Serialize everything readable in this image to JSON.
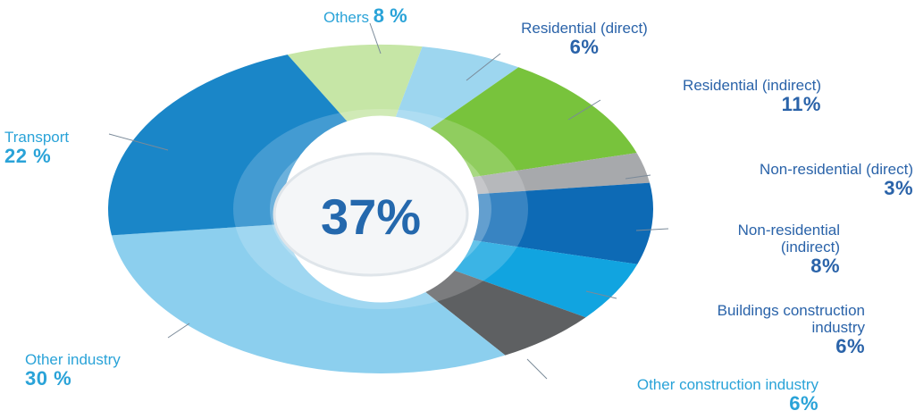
{
  "chart_data": {
    "type": "pie",
    "center_label": "37%",
    "slices": [
      {
        "name": "Others",
        "value": 8,
        "value_label": "8%",
        "color": "#c6e6a6"
      },
      {
        "name": "Residential (direct)",
        "value": 6,
        "value_label": "6%",
        "color": "#9dd6ef"
      },
      {
        "name": "Residential (indirect)",
        "value": 11,
        "value_label": "11%",
        "color": "#78c33c"
      },
      {
        "name": "Non-residential (direct)",
        "value": 3,
        "value_label": "3%",
        "color": "#a7a9ac"
      },
      {
        "name": "Non-residential (indirect)",
        "value": 8,
        "value_label": "8%",
        "color": "#0d6ab5"
      },
      {
        "name": "Buildings construction industry",
        "value": 6,
        "value_label": "6%",
        "color": "#11a4e0"
      },
      {
        "name": "Other construction industry",
        "value": 6,
        "value_label": "6%",
        "color": "#5e6062"
      },
      {
        "name": "Other industry",
        "value": 30,
        "value_label": "30 %",
        "color": "#8ccfee"
      },
      {
        "name": "Transport",
        "value": 22,
        "value_label": "22 %",
        "color": "#1a86c8"
      }
    ]
  },
  "labels": {
    "others": {
      "name": "Others",
      "value": "8 %"
    },
    "res_direct": {
      "name": "Residential (direct)",
      "value": "6%"
    },
    "res_indirect": {
      "name": "Residential (indirect)",
      "value": "11%"
    },
    "nonres_direct": {
      "name": "Non-residential (direct)",
      "value": "3%"
    },
    "nonres_indirect_1": "Non-residential",
    "nonres_indirect_2": "(indirect)",
    "nonres_indirect_value": "8%",
    "bci_1": "Buildings construction",
    "bci_2": "industry",
    "bci_value": "6%",
    "oci": {
      "name": "Other construction industry",
      "value": "6%"
    },
    "other_industry": {
      "name": "Other industry",
      "value": "30 %"
    },
    "transport": {
      "name": "Transport",
      "value": "22 %"
    }
  }
}
